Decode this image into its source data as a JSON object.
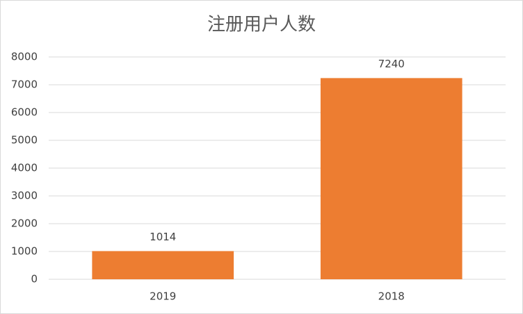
{
  "chart_data": {
    "type": "bar",
    "title": "注册用户人数",
    "categories": [
      "2019",
      "2018"
    ],
    "values": [
      1014,
      7240
    ],
    "color": "#ed7d31",
    "ylim": [
      0,
      8000
    ],
    "yticks": [
      0,
      1000,
      2000,
      3000,
      4000,
      5000,
      6000,
      7000,
      8000
    ],
    "grid": true,
    "data_labels": true
  }
}
